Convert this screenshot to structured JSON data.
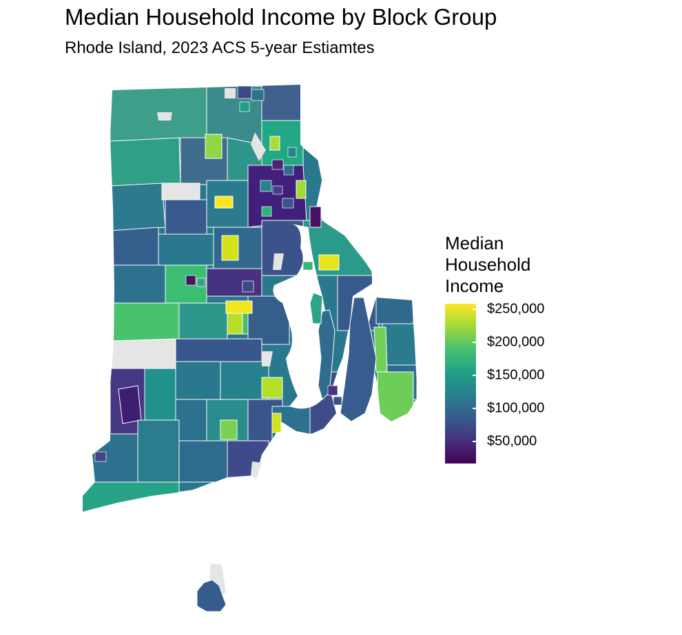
{
  "title": "Median Household Income by Block Group",
  "subtitle": "Rhode Island, 2023 ACS 5-year Estiamtes",
  "legend": {
    "title_lines": [
      "Median",
      "Household",
      "Income"
    ],
    "ticks": [
      {
        "label": "$250,000",
        "value": 250000
      },
      {
        "label": "$200,000",
        "value": 200000
      },
      {
        "label": "$150,000",
        "value": 150000
      },
      {
        "label": "$100,000",
        "value": 100000
      },
      {
        "label": "$50,000",
        "value": 50000
      }
    ],
    "colors": [
      "#fde725",
      "#a0da39",
      "#4ac16d",
      "#1fa187",
      "#277f8e",
      "#365c8d",
      "#46327e",
      "#440154"
    ],
    "missing_color": "#e5e5e5"
  },
  "map": {
    "state": "Rhode Island",
    "boundary_color": "#ffffff",
    "water_color": "#ffffff"
  }
}
